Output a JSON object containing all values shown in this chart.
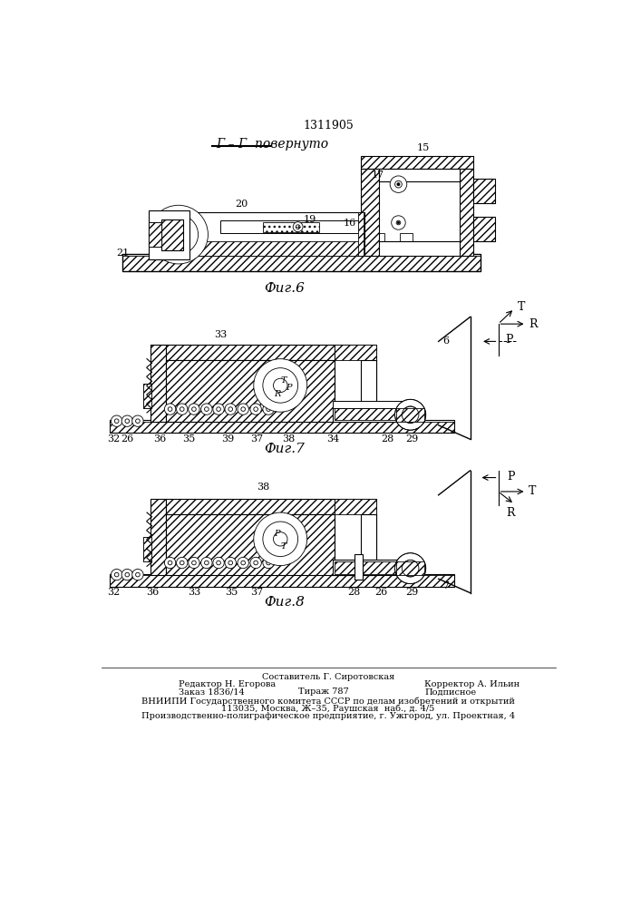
{
  "patent_number": "1311905",
  "section_label": "Г – Г  повернуто",
  "fig6_label": "Фиг.6",
  "fig7_label": "Фиг.7",
  "fig8_label": "Фиг.8",
  "footer_line1_left": "Редактор Н. Егорова",
  "footer_line1_mid": "Составитель Г. Сиротовская",
  "footer_line1_right": "Корректор А. Ильин",
  "footer_line2_left": "Заказ 1836/14",
  "footer_line2_mid": "Тираж 787",
  "footer_line2_right": "Подписное",
  "footer_line3": "ВНИИПИ Государственного комитета СССР по делам изобретений и открытий",
  "footer_line4": "113035, Москва, Ж–35, Раушская  наб., д. 4/5",
  "footer_line5": "Производственно-полиграфическое предприятие, г. Ужгород, ул. Проектная, 4",
  "bg_color": "#ffffff",
  "line_color": "#000000"
}
